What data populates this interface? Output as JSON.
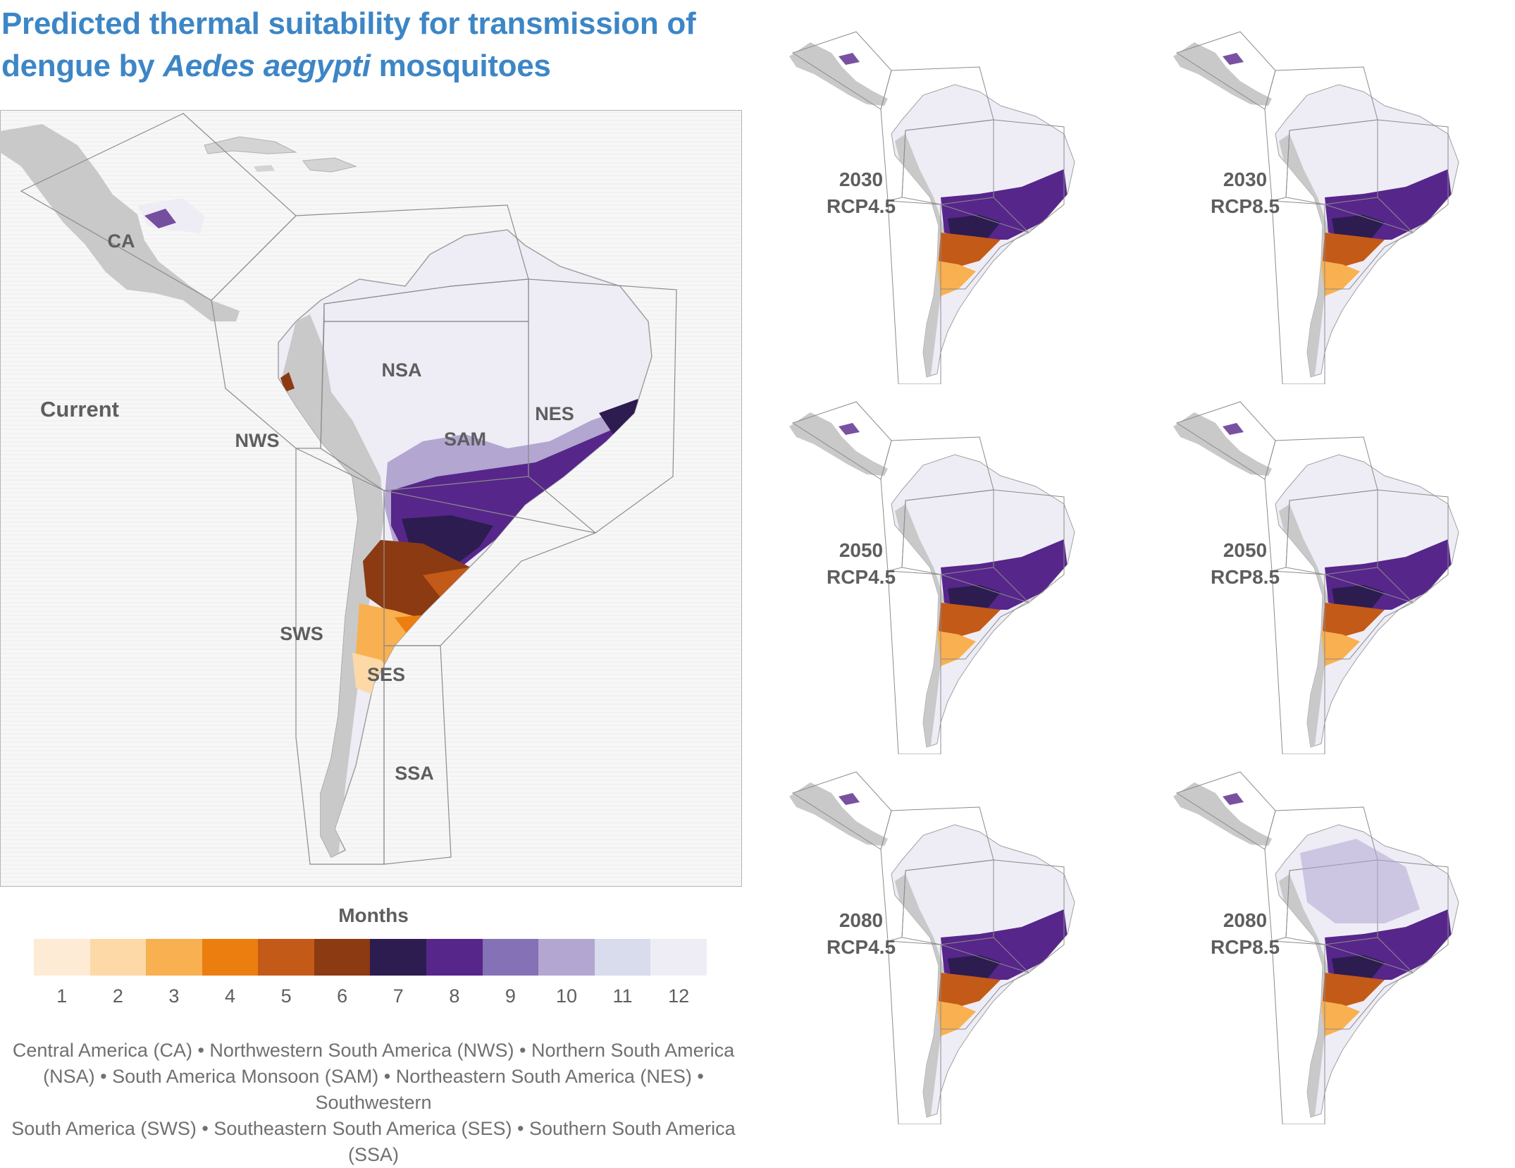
{
  "title": {
    "line1": "Predicted thermal suitability for transmission of",
    "line2_prefix": "dengue by ",
    "line2_italic": "Aedes aegypti",
    "line2_suffix": " mosquitoes"
  },
  "main_map": {
    "period_label": "Current",
    "regions": [
      "CA",
      "NWS",
      "NSA",
      "SAM",
      "NES",
      "SWS",
      "SES",
      "SSA"
    ]
  },
  "scenarios": [
    {
      "year": "2030",
      "rcp": "RCP4.5"
    },
    {
      "year": "2030",
      "rcp": "RCP8.5"
    },
    {
      "year": "2050",
      "rcp": "RCP4.5"
    },
    {
      "year": "2050",
      "rcp": "RCP8.5"
    },
    {
      "year": "2080",
      "rcp": "RCP4.5"
    },
    {
      "year": "2080",
      "rcp": "RCP8.5"
    }
  ],
  "legend": {
    "title": "Months",
    "ticks": [
      "1",
      "2",
      "3",
      "4",
      "5",
      "6",
      "7",
      "8",
      "9",
      "10",
      "11",
      "12"
    ],
    "colors": [
      "#fdebd6",
      "#fdd9a8",
      "#f8b050",
      "#ec7e10",
      "#c45a18",
      "#8c3a12",
      "#2c1c50",
      "#57268a",
      "#8571b5",
      "#b3a6d1",
      "#d9dcec",
      "#eeedf6"
    ]
  },
  "caption": {
    "line1": "Central America (CA) • Northwestern South America  (NWS) • Northern South America",
    "line2": "(NSA) • South America Monsoon (SAM) • Northeastern South America (NES) • Southwestern",
    "line3": "South America (SWS) • Southeastern South America (SES) • Southern South America (SSA)"
  },
  "colors": {
    "land_grey": "#cfcfcf",
    "suitable_12": "#eeedf6",
    "region_outline": "#8c8c8c",
    "title_blue": "#3d86c6"
  }
}
